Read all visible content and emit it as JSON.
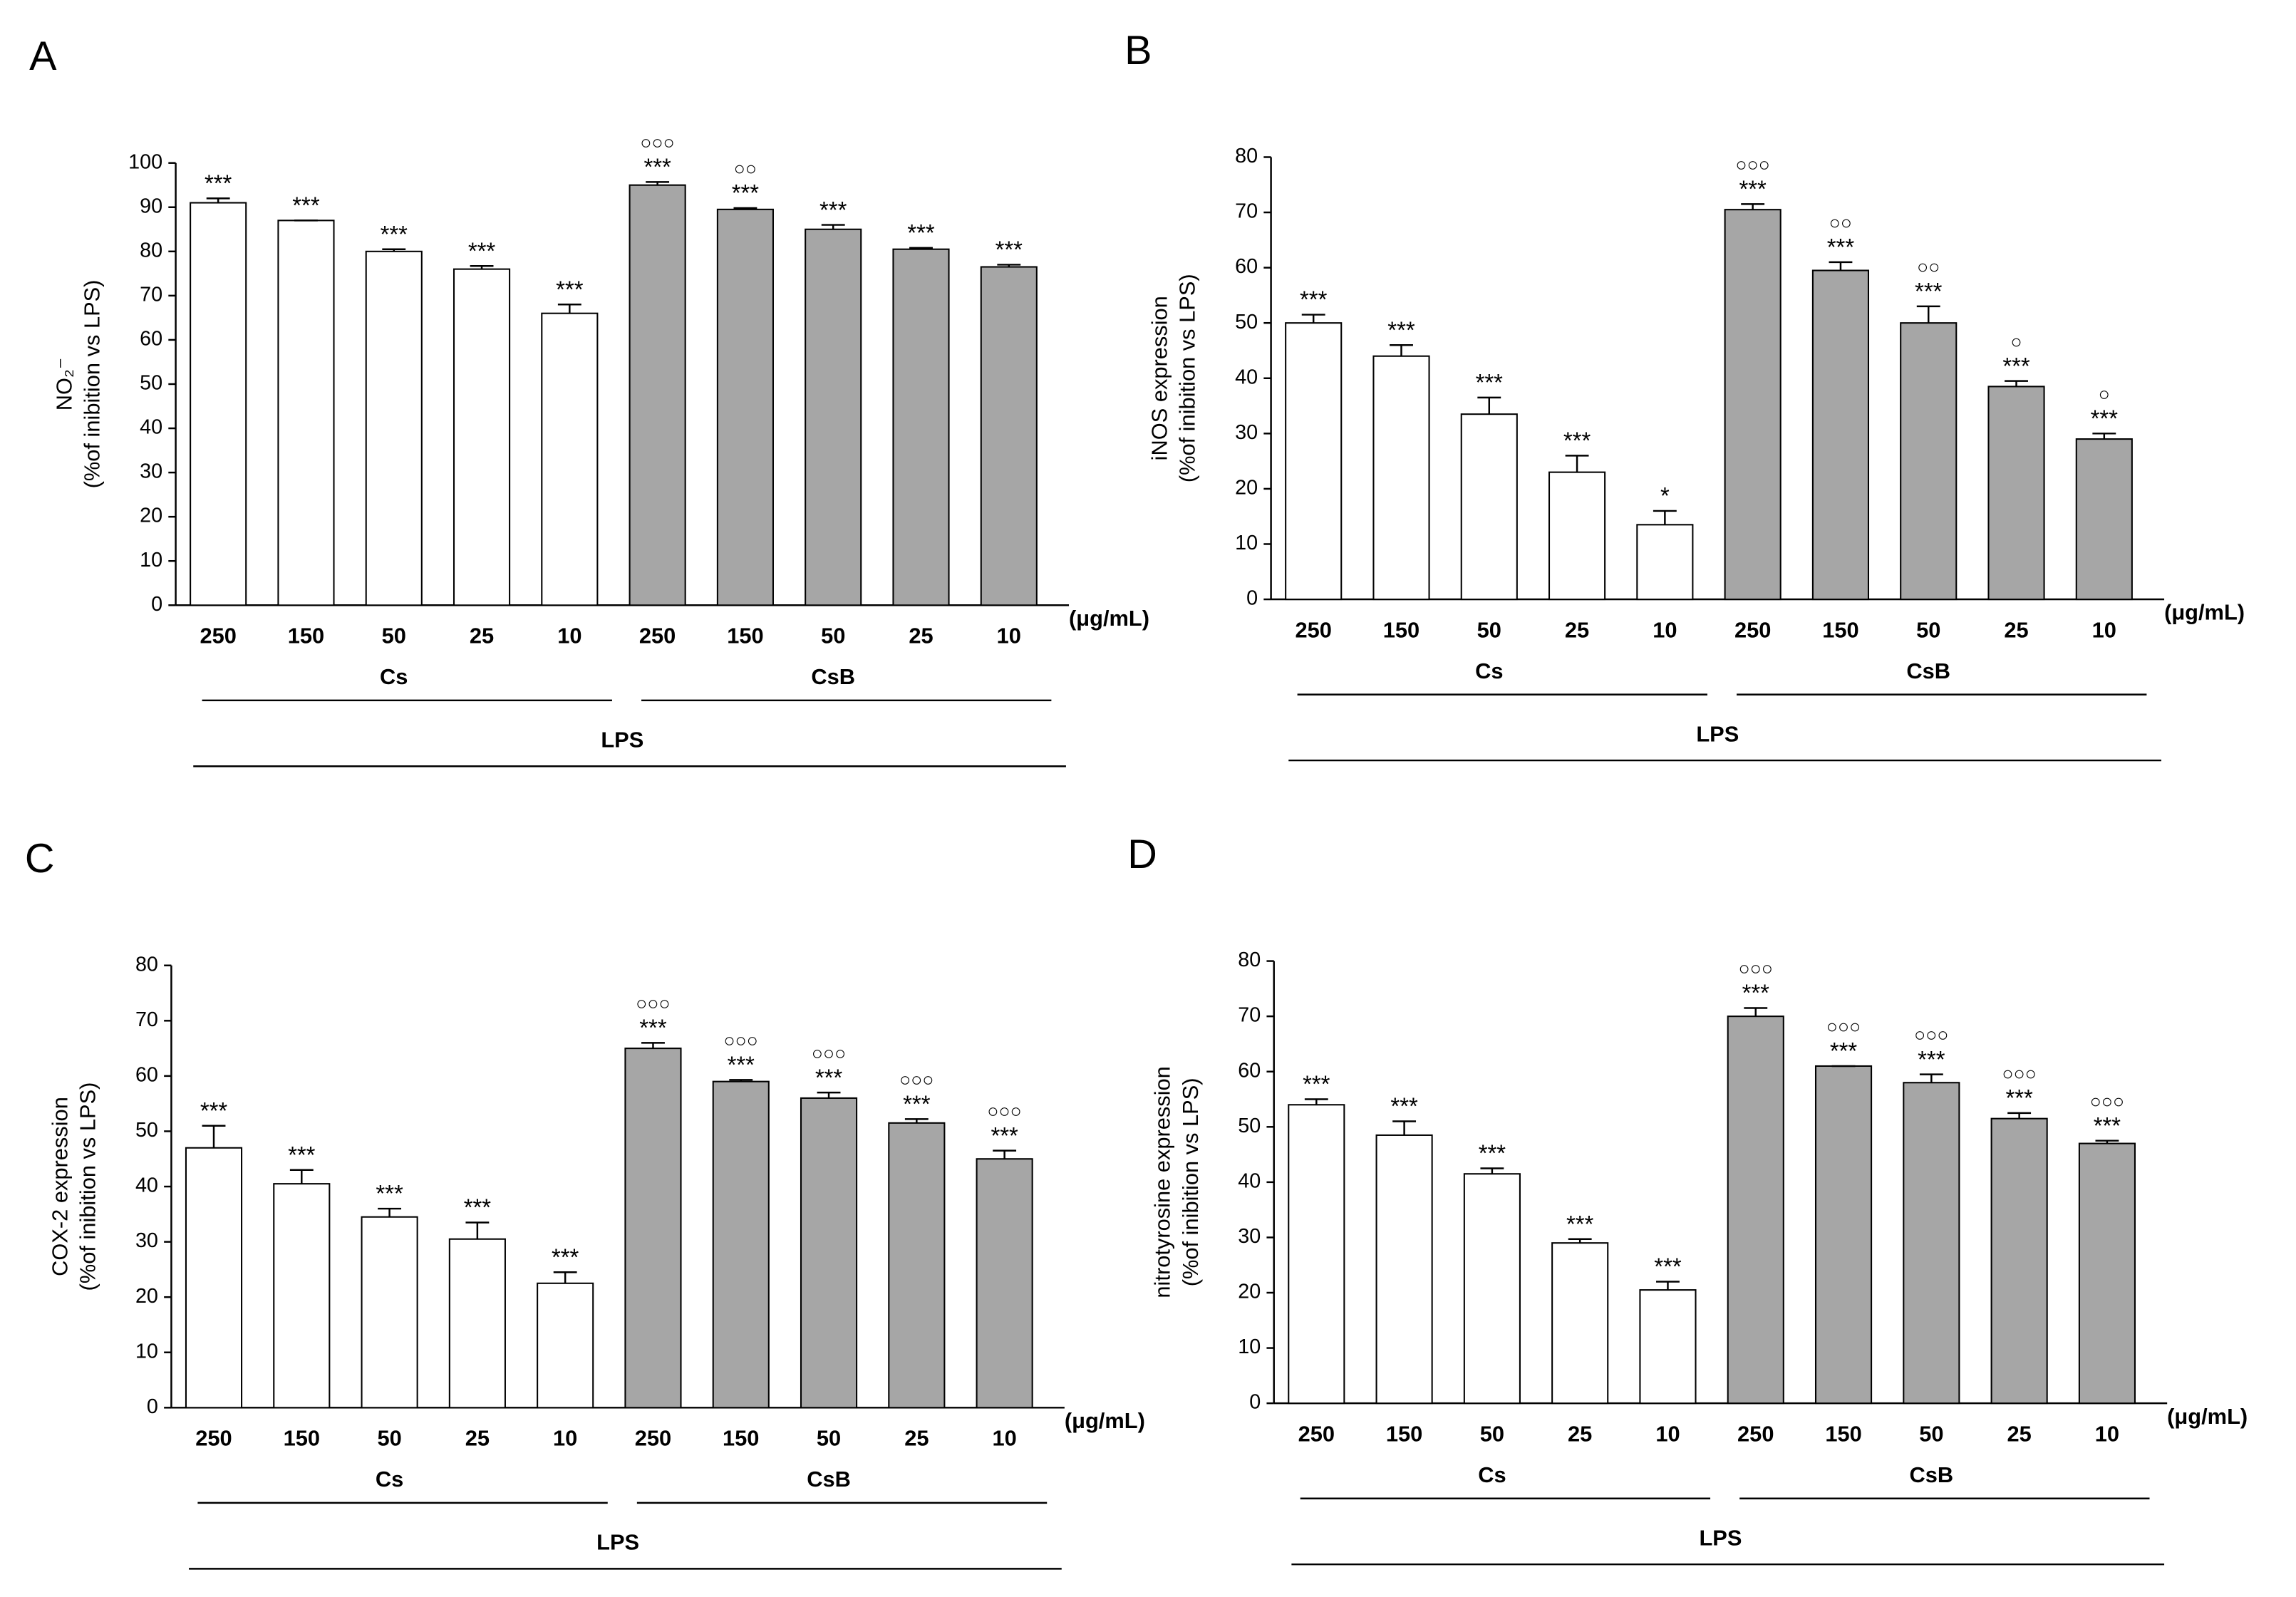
{
  "chart_data": [
    {
      "type": "bar",
      "panel": "A",
      "y_label": [
        "NO₂⁻",
        "(%of inibition vs LPS)"
      ],
      "x_unit": "(μg/mL)",
      "categories": [
        "250",
        "150",
        "50",
        "25",
        "10"
      ],
      "group_label": "LPS",
      "ylim": [
        0,
        100
      ],
      "yticks": [
        0,
        10,
        20,
        30,
        40,
        50,
        60,
        70,
        80,
        90,
        100
      ],
      "series": [
        {
          "name": "Cs",
          "color": "#ffffff",
          "values": [
            91,
            87,
            80,
            76,
            66
          ],
          "errors": [
            1,
            0,
            0.5,
            0.7,
            2
          ],
          "significance": [
            "***",
            "***",
            "***",
            "***",
            "***"
          ],
          "markers": [
            null,
            null,
            null,
            null,
            null
          ]
        },
        {
          "name": "CsB",
          "color": "#a6a6a6",
          "values": [
            95,
            89.5,
            85,
            80.5,
            76.5
          ],
          "errors": [
            0.7,
            0.3,
            1,
            0.3,
            0.5
          ],
          "significance": [
            "***",
            "***",
            "***",
            "***",
            "***"
          ],
          "markers": [
            "○○○",
            "○○",
            null,
            null,
            null
          ]
        }
      ]
    },
    {
      "type": "bar",
      "panel": "B",
      "y_label": [
        "iNOS expression",
        "(%of inibition vs LPS)"
      ],
      "x_unit": "(μg/mL)",
      "categories": [
        "250",
        "150",
        "50",
        "25",
        "10"
      ],
      "group_label": "LPS",
      "ylim": [
        0,
        80
      ],
      "yticks": [
        0,
        10,
        20,
        30,
        40,
        50,
        60,
        70,
        80
      ],
      "series": [
        {
          "name": "Cs",
          "color": "#ffffff",
          "values": [
            50,
            44,
            33.5,
            23,
            13.5
          ],
          "errors": [
            1.5,
            2,
            3,
            3,
            2.5
          ],
          "significance": [
            "***",
            "***",
            "***",
            "***",
            "*"
          ],
          "markers": [
            null,
            null,
            null,
            null,
            null
          ]
        },
        {
          "name": "CsB",
          "color": "#a6a6a6",
          "values": [
            70.5,
            59.5,
            50,
            38.5,
            29
          ],
          "errors": [
            1,
            1.5,
            3,
            1,
            1
          ],
          "significance": [
            "***",
            "***",
            "***",
            "***",
            "***"
          ],
          "markers": [
            "○○○",
            "○○",
            "○○",
            "○",
            "○"
          ]
        }
      ]
    },
    {
      "type": "bar",
      "panel": "C",
      "y_label": [
        "COX-2 expression",
        "(%of inibition vs LPS)"
      ],
      "x_unit": "(μg/mL)",
      "categories": [
        "250",
        "150",
        "50",
        "25",
        "10"
      ],
      "group_label": "LPS",
      "ylim": [
        0,
        80
      ],
      "yticks": [
        0,
        10,
        20,
        30,
        40,
        50,
        60,
        70,
        80
      ],
      "series": [
        {
          "name": "Cs",
          "color": "#ffffff",
          "values": [
            47,
            40.5,
            34.5,
            30.5,
            22.5
          ],
          "errors": [
            4,
            2.5,
            1.5,
            3,
            2
          ],
          "significance": [
            "***",
            "***",
            "***",
            "***",
            "***"
          ],
          "markers": [
            null,
            null,
            null,
            null,
            null
          ]
        },
        {
          "name": "CsB",
          "color": "#a6a6a6",
          "values": [
            65,
            59,
            56,
            51.5,
            45
          ],
          "errors": [
            1,
            0.3,
            1,
            0.7,
            1.5
          ],
          "significance": [
            "***",
            "***",
            "***",
            "***",
            "***"
          ],
          "markers": [
            "○○○",
            "○○○",
            "○○○",
            "○○○",
            "○○○"
          ]
        }
      ]
    },
    {
      "type": "bar",
      "panel": "D",
      "y_label": [
        "nitrotyrosine expression",
        "(%of inibition vs LPS)"
      ],
      "x_unit": "(μg/mL)",
      "categories": [
        "250",
        "150",
        "50",
        "25",
        "10"
      ],
      "group_label": "LPS",
      "ylim": [
        0,
        80
      ],
      "yticks": [
        0,
        10,
        20,
        30,
        40,
        50,
        60,
        70,
        80
      ],
      "series": [
        {
          "name": "Cs",
          "color": "#ffffff",
          "values": [
            54,
            48.5,
            41.5,
            29,
            20.5
          ],
          "errors": [
            1,
            2.5,
            1,
            0.7,
            1.5
          ],
          "significance": [
            "***",
            "***",
            "***",
            "***",
            "***"
          ],
          "markers": [
            null,
            null,
            null,
            null,
            null
          ]
        },
        {
          "name": "CsB",
          "color": "#a6a6a6",
          "values": [
            70,
            61,
            58,
            51.5,
            47
          ],
          "errors": [
            1.5,
            0,
            1.5,
            1,
            0.5
          ],
          "significance": [
            "***",
            "***",
            "***",
            "***",
            "***"
          ],
          "markers": [
            "○○○",
            "○○○",
            "○○○",
            "○○○",
            "○○○"
          ]
        }
      ]
    }
  ]
}
